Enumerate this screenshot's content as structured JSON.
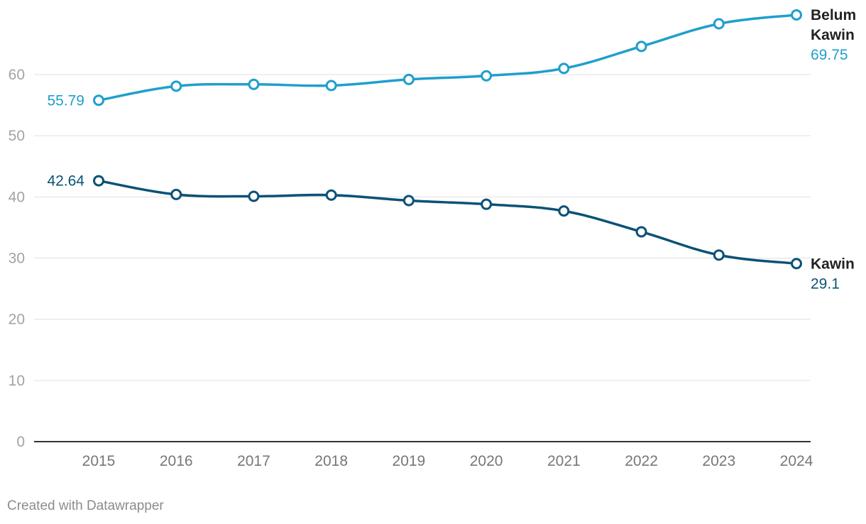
{
  "chart_data": {
    "type": "line",
    "x": [
      2015,
      2016,
      2017,
      2018,
      2019,
      2020,
      2021,
      2022,
      2023,
      2024
    ],
    "x_tick_labels": [
      "2015",
      "2016",
      "2017",
      "2018",
      "2019",
      "2020",
      "2021",
      "2022",
      "2023",
      "2024"
    ],
    "y_ticks": [
      0,
      10,
      20,
      30,
      40,
      50,
      60
    ],
    "y_tick_labels": [
      "0",
      "10",
      "20",
      "30",
      "40",
      "50",
      "60"
    ],
    "ylim": [
      0,
      70
    ],
    "grid": true,
    "legend": "direct labels at line ends",
    "series": [
      {
        "name": "Belum Kawin",
        "name_lines": [
          "Belum",
          "Kawin"
        ],
        "color": "#1f9fcd",
        "values": [
          55.79,
          58.1,
          58.4,
          58.2,
          59.2,
          59.8,
          61.0,
          64.6,
          68.3,
          69.75
        ],
        "start_label": "55.79",
        "end_label": "69.75"
      },
      {
        "name": "Kawin",
        "name_lines": [
          "Kawin"
        ],
        "color": "#0b5277",
        "values": [
          42.64,
          40.4,
          40.1,
          40.3,
          39.4,
          38.8,
          37.7,
          34.3,
          30.5,
          29.1
        ],
        "start_label": "42.64",
        "end_label": "29.1"
      }
    ]
  },
  "footer": {
    "credit": "Created with Datawrapper"
  }
}
